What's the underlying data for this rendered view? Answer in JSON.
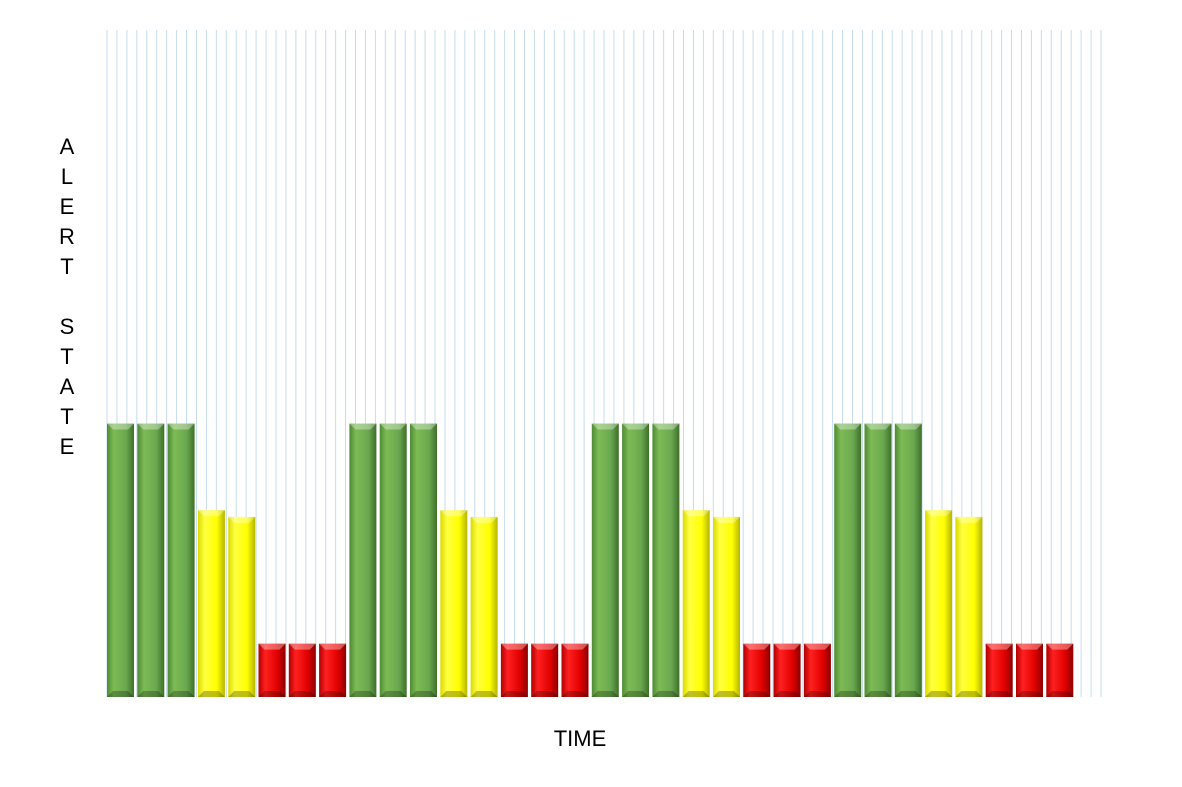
{
  "chart_data": {
    "type": "bar",
    "xlabel": "TIME",
    "ylabel": "ALERT STATE",
    "grid": true,
    "legend": "none",
    "ylim": [
      0,
      100
    ],
    "x": [
      1,
      2,
      3,
      4,
      5,
      6,
      7,
      8,
      9,
      10,
      11,
      12,
      13,
      14,
      15,
      16,
      17,
      18,
      19,
      20,
      21,
      22,
      23,
      24,
      25,
      26,
      27,
      28,
      29,
      30,
      31,
      32
    ],
    "values": [
      41,
      41,
      41,
      28,
      27,
      8,
      8,
      8,
      41,
      41,
      41,
      28,
      27,
      8,
      8,
      8,
      41,
      41,
      41,
      28,
      27,
      8,
      8,
      8,
      41,
      41,
      41,
      28,
      27,
      8,
      8,
      8
    ],
    "bar_colors": [
      "green",
      "green",
      "green",
      "yellow",
      "yellow",
      "red",
      "red",
      "red",
      "green",
      "green",
      "green",
      "yellow",
      "yellow",
      "red",
      "red",
      "red",
      "green",
      "green",
      "green",
      "yellow",
      "yellow",
      "red",
      "red",
      "red",
      "green",
      "green",
      "green",
      "yellow",
      "yellow",
      "red",
      "red",
      "red"
    ],
    "palette": {
      "green": "#6aa84f",
      "yellow": "#ffff00",
      "red": "#e00000"
    }
  }
}
